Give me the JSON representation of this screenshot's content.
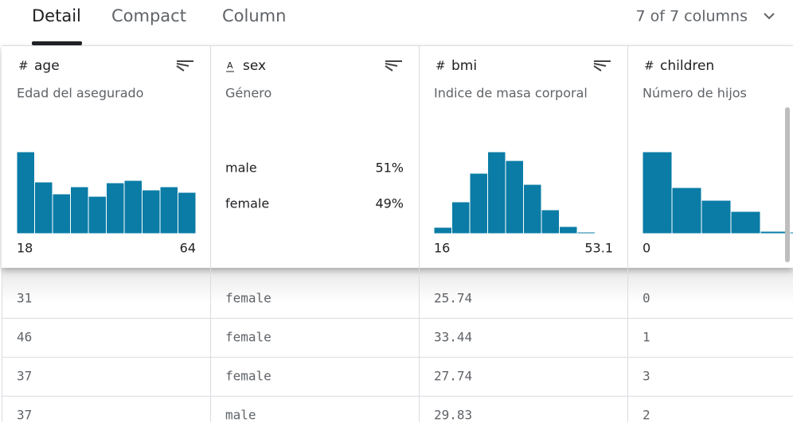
{
  "tabs": [
    "Detail",
    "Compact",
    "Column"
  ],
  "column_count": "7 of 7 columns",
  "columns": [
    {
      "icon": "#",
      "name": "age",
      "description": "Edad del asegurado",
      "histogram": [
        103,
        65,
        50,
        59,
        47,
        64,
        67,
        55,
        59,
        52
      ],
      "min": "18",
      "max": "64"
    },
    {
      "icon": "A",
      "name": "sex",
      "description": "Género",
      "categories": [
        "male",
        "female"
      ],
      "percentages": [
        "51%",
        "49%"
      ]
    },
    {
      "icon": "#",
      "name": "bmi",
      "description": "Indice de masa corporal",
      "histogram": [
        8,
        40,
        76,
        103,
        92,
        62,
        30,
        9,
        2,
        1
      ],
      "min": "16",
      "max": "53.1"
    },
    {
      "icon": "#",
      "name": "children",
      "description": "Número de hijos",
      "histogram": [
        103,
        58,
        42,
        28,
        3,
        2
      ],
      "min": "0"
    }
  ],
  "rows": [
    [
      "31",
      "female",
      "25.74",
      "0"
    ],
    [
      "46",
      "female",
      "33.44",
      "1"
    ],
    [
      "37",
      "female",
      "27.74",
      "3"
    ],
    [
      "37",
      "male",
      "29.83",
      "2"
    ]
  ]
}
